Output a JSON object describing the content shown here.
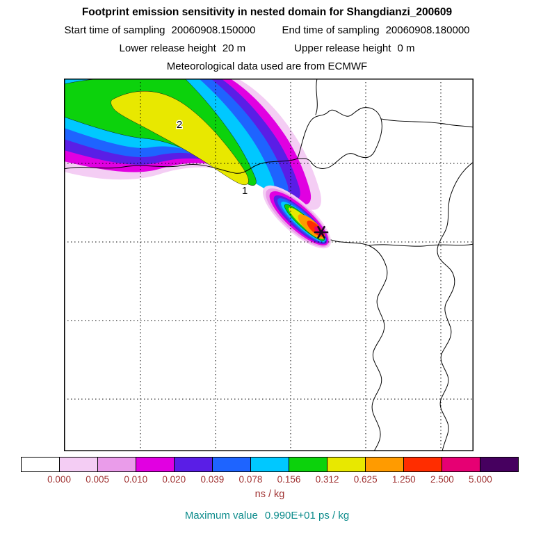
{
  "header": {
    "title": "Footprint emission sensitivity in nested domain for Shangdianzi_200609",
    "sampling_start_label": "Start time of sampling",
    "sampling_start_value": "20060908.150000",
    "sampling_end_label": "End time of sampling",
    "sampling_end_value": "20060908.180000",
    "lower_release_label": "Lower release height",
    "lower_release_value": "20 m",
    "upper_release_label": "Upper release height",
    "upper_release_value": "0 m",
    "met_line": "Meteorological data used are from ECMWF"
  },
  "map": {
    "contour_labels": [
      {
        "text": "2"
      },
      {
        "text": "1"
      }
    ],
    "receptor_station": "Shangdianzi"
  },
  "colorbar": {
    "units": "ns / kg",
    "ticks": [
      "0.000",
      "0.005",
      "0.010",
      "0.020",
      "0.039",
      "0.078",
      "0.156",
      "0.312",
      "0.625",
      "1.250",
      "2.500",
      "5.000"
    ],
    "colors": [
      "#ffffff",
      "#f4cdf4",
      "#ea9cea",
      "#e100e1",
      "#5a1ee6",
      "#1e64ff",
      "#00c8ff",
      "#0cd20c",
      "#e8e800",
      "#ff9b00",
      "#ff2d00",
      "#e60073",
      "#46005f"
    ]
  },
  "footer": {
    "max_label": "Maximum value",
    "max_value": "0.990E+01 ps / kg"
  },
  "chart_data": {
    "type": "heatmap",
    "subtype": "footprint-emission-sensitivity-contour-map",
    "title": "Footprint emission sensitivity in nested domain for Shangdianzi_200609",
    "station": "Shangdianzi_200609",
    "sampling_start": "20060908.150000",
    "sampling_end": "20060908.180000",
    "lower_release_height": "20 m",
    "upper_release_height": "0 m",
    "meteorology_source": "ECMWF",
    "units": "ns / kg",
    "contour_levels": [
      0.0,
      0.005,
      0.01,
      0.02,
      0.039,
      0.078,
      0.156,
      0.312,
      0.625,
      1.25,
      2.5,
      5.0
    ],
    "palette": [
      "#ffffff",
      "#f4cdf4",
      "#ea9cea",
      "#e100e1",
      "#5a1ee6",
      "#1e64ff",
      "#00c8ff",
      "#0cd20c",
      "#e8e800",
      "#ff9b00",
      "#ff2d00",
      "#e60073",
      "#46005f"
    ],
    "maximum_value": "0.990E+01 ps / kg",
    "contour_line_labels": [
      "2",
      "1"
    ],
    "plume_description": "Elongated plume extending from receptor star marker (right-center of map) toward the upper-left corner; highest sensitivity (orange/red/magenta) adjacent to receptor, yellow-green core along plume axis, blue-magenta fringe outside",
    "receptor_marker": "dark six-pointed star at plume tip",
    "grid": "dashed lat-lon grid, 5 vertical and 4 horizontal interior lines",
    "legend_position": "bottom horizontal colorbar",
    "basemap": "coastlines and borders of Bohai Bay / northeast China region"
  }
}
